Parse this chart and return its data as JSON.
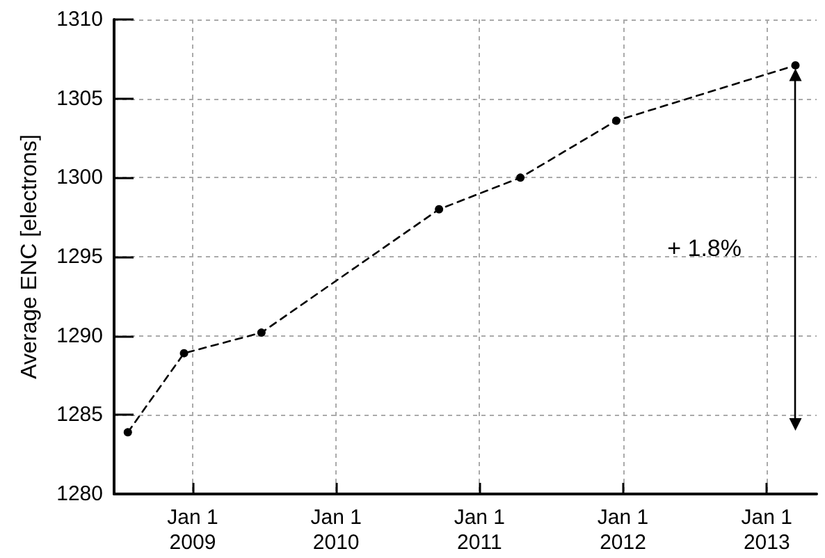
{
  "chart_data": {
    "type": "line",
    "ylabel": "Average ENC [electrons]",
    "x": [
      "2008-07-20",
      "2008-12-10",
      "2009-06-25",
      "2010-09-20",
      "2011-04-15",
      "2011-12-15",
      "2013-03-15"
    ],
    "series": [
      {
        "color": "#000000",
        "values": [
          1283.9,
          1288.9,
          1290.2,
          1298.0,
          1300.0,
          1303.6,
          1307.1
        ]
      }
    ],
    "xlim": [
      "2008-06-15",
      "2013-05-08"
    ],
    "xticks": [
      {
        "value": "2009-01-01",
        "label": "Jan 1\n2009"
      },
      {
        "value": "2010-01-01",
        "label": "Jan 1\n2010"
      },
      {
        "value": "2011-01-01",
        "label": "Jan 1\n2011"
      },
      {
        "value": "2012-01-01",
        "label": "Jan 1\n2012"
      },
      {
        "value": "2013-01-01",
        "label": "Jan 1\n2013"
      }
    ],
    "ylim": [
      1280,
      1310
    ],
    "yticks": [
      1280,
      1285,
      1290,
      1295,
      1300,
      1305,
      1310
    ],
    "annotations": [
      "+ 1.8%"
    ],
    "grid": true,
    "marker": "circle",
    "line_style": "dashed"
  }
}
